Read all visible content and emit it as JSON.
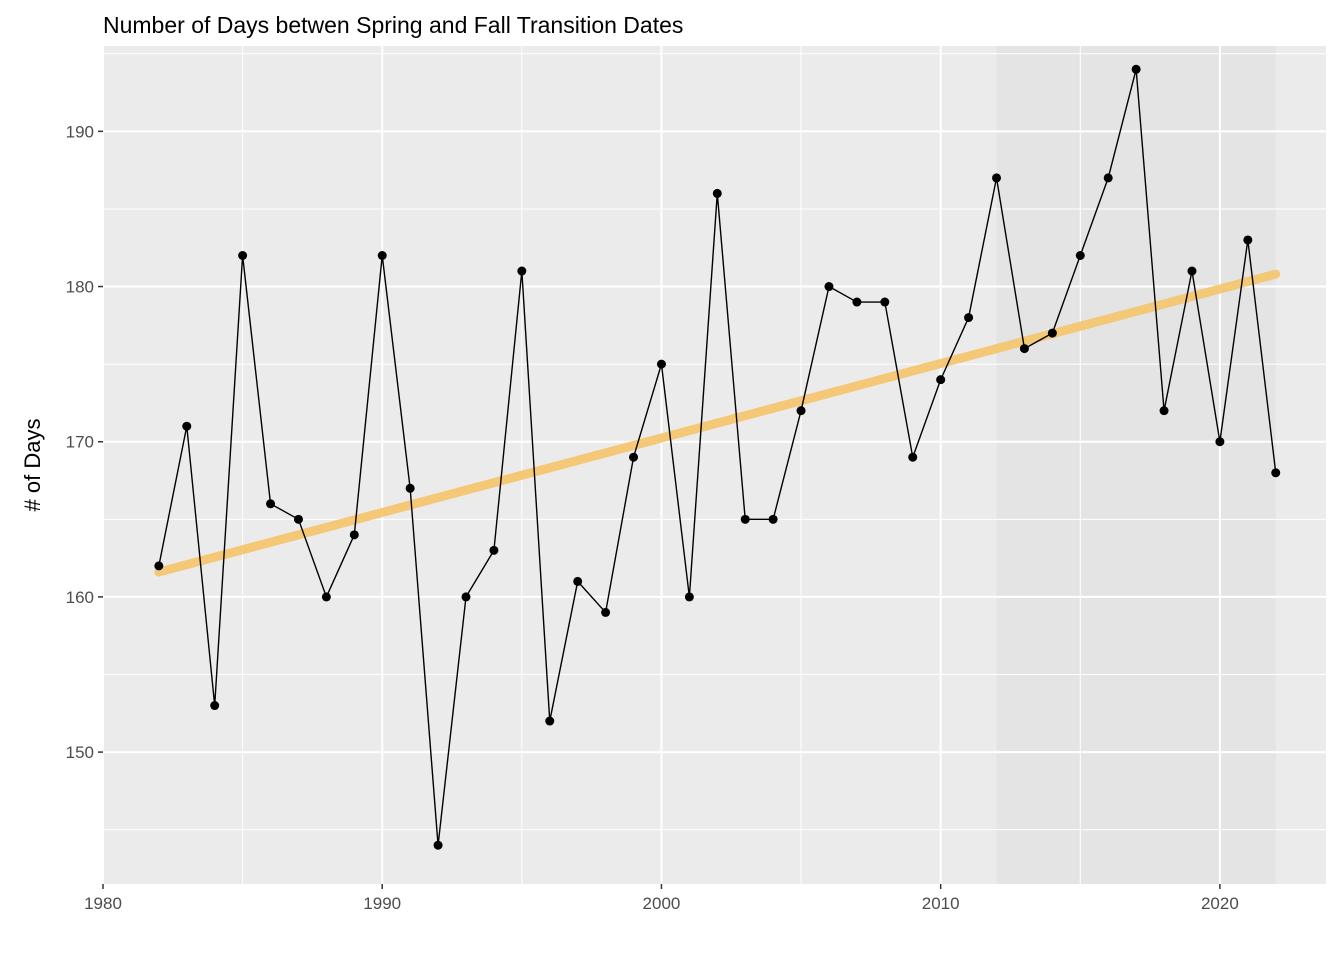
{
  "chart_data": {
    "type": "line",
    "title": "Number of Days betwen Spring and Fall Transition Dates",
    "xlabel": "",
    "ylabel": "# of Days",
    "xlim": [
      1980,
      2023.8
    ],
    "ylim": [
      141.5,
      195.5
    ],
    "x_ticks": [
      1980,
      1990,
      2000,
      2010,
      2020
    ],
    "y_ticks": [
      150,
      160,
      170,
      180,
      190
    ],
    "grid": true,
    "shaded_region": {
      "x_start": 2012,
      "x_end": 2022,
      "color": "#e4e4e4"
    },
    "series": [
      {
        "x": [
          1982,
          1983,
          1984,
          1985,
          1986,
          1987,
          1988,
          1989,
          1990,
          1991,
          1992,
          1993,
          1994,
          1995,
          1996,
          1997,
          1998,
          1999,
          2000,
          2001,
          2002,
          2003,
          2004,
          2005,
          2006,
          2007,
          2008,
          2009,
          2010,
          2011,
          2012,
          2013,
          2014,
          2015,
          2016,
          2017,
          2018,
          2019,
          2020,
          2021,
          2022
        ],
        "values": [
          162,
          171,
          153,
          182,
          166,
          165,
          160,
          164,
          182,
          167,
          144,
          160,
          163,
          181,
          152,
          161,
          159,
          169,
          175,
          160,
          186,
          165,
          165,
          172,
          180,
          179,
          179,
          169,
          174,
          178,
          187,
          176,
          177,
          182,
          187,
          194,
          172,
          181,
          170,
          183,
          168
        ],
        "color": "#000000"
      }
    ],
    "trend_line": {
      "x": [
        1982,
        2022
      ],
      "y": [
        161.6,
        180.8
      ],
      "color": "#f5c56b"
    }
  }
}
